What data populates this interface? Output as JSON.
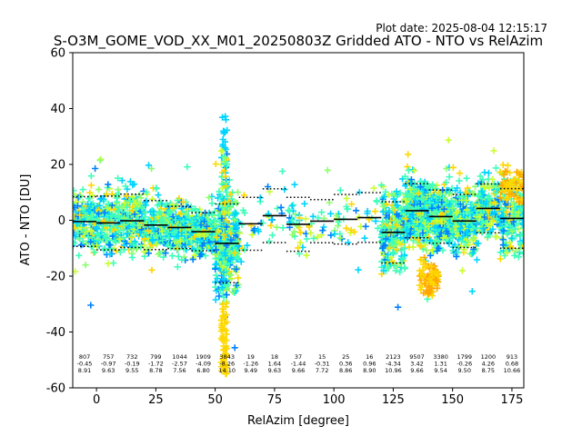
{
  "header": {
    "plot_date": "Plot date: 2025-08-04 12:15:17",
    "title": "S-O3M_GOME_VOD_XX_M01_20250803Z Gridded ATO - NTO vs RelAzim"
  },
  "chart_data": {
    "type": "scatter",
    "xlabel": "RelAzim [degree]",
    "ylabel": "ATO - NTO [DU]",
    "xlim": [
      -10,
      180
    ],
    "ylim": [
      -60,
      60
    ],
    "xticks": [
      0,
      25,
      50,
      75,
      100,
      125,
      150,
      175
    ],
    "yticks": [
      -60,
      -40,
      -20,
      0,
      20,
      40,
      60
    ],
    "grid": false,
    "marker": "+",
    "colors": {
      "dark_blue": "#0000ff",
      "blue": "#0080ff",
      "cyan": "#00d4ff",
      "aquamarine": "#3dffb9",
      "light_green": "#8aff6c",
      "yellow_green": "#c9ff2e",
      "yellow": "#ffd700",
      "orange": "#ffa500",
      "mean_line": "#000000"
    },
    "bins": [
      {
        "center": -5,
        "count": "807",
        "mean": "-0.45",
        "std": "8.91",
        "mean_value": -0.45,
        "std_value": 8.91
      },
      {
        "center": 5,
        "count": "757",
        "mean": "-0.97",
        "std": "9.63",
        "mean_value": -0.97,
        "std_value": 9.63
      },
      {
        "center": 15,
        "count": "732",
        "mean": "-0.19",
        "std": "9.55",
        "mean_value": -0.19,
        "std_value": 9.55
      },
      {
        "center": 25,
        "count": "799",
        "mean": "-1.72",
        "std": "8.78",
        "mean_value": -1.72,
        "std_value": 8.78
      },
      {
        "center": 35,
        "count": "1044",
        "mean": "-2.57",
        "std": "7.56",
        "mean_value": -2.57,
        "std_value": 7.56
      },
      {
        "center": 45,
        "count": "1909",
        "mean": "-4.09",
        "std": "6.80",
        "mean_value": -4.09,
        "std_value": 6.8
      },
      {
        "center": 55,
        "count": "3843",
        "mean": "-8.26",
        "std": "14.10",
        "mean_value": -8.26,
        "std_value": 14.1
      },
      {
        "center": 65,
        "count": "19",
        "mean": "-1.26",
        "std": "9.49",
        "mean_value": -1.26,
        "std_value": 9.49
      },
      {
        "center": 75,
        "count": "18",
        "mean": "1.64",
        "std": "9.63",
        "mean_value": 1.64,
        "std_value": 9.63
      },
      {
        "center": 85,
        "count": "37",
        "mean": "-1.44",
        "std": "9.66",
        "mean_value": -1.44,
        "std_value": 9.66
      },
      {
        "center": 95,
        "count": "15",
        "mean": "-0.31",
        "std": "7.72",
        "mean_value": -0.31,
        "std_value": 7.72
      },
      {
        "center": 105,
        "count": "25",
        "mean": "0.36",
        "std": "8.86",
        "mean_value": 0.36,
        "std_value": 8.86
      },
      {
        "center": 115,
        "count": "16",
        "mean": "0.96",
        "std": "8.90",
        "mean_value": 0.96,
        "std_value": 8.9
      },
      {
        "center": 125,
        "count": "2123",
        "mean": "-4.34",
        "std": "10.96",
        "mean_value": -4.34,
        "std_value": 10.96
      },
      {
        "center": 135,
        "count": "9507",
        "mean": "3.42",
        "std": "9.66",
        "mean_value": 3.42,
        "std_value": 9.66
      },
      {
        "center": 145,
        "count": "3380",
        "mean": "1.31",
        "std": "9.54",
        "mean_value": 1.31,
        "std_value": 9.54
      },
      {
        "center": 155,
        "count": "1799",
        "mean": "-0.26",
        "std": "9.50",
        "mean_value": -0.26,
        "std_value": 9.5
      },
      {
        "center": 165,
        "count": "1200",
        "mean": "4.26",
        "std": "8.75",
        "mean_value": 4.26,
        "std_value": 8.75
      },
      {
        "center": 175,
        "count": "913",
        "mean": "0.68",
        "std": "10.66",
        "mean_value": 0.68,
        "std_value": 10.66
      }
    ]
  }
}
